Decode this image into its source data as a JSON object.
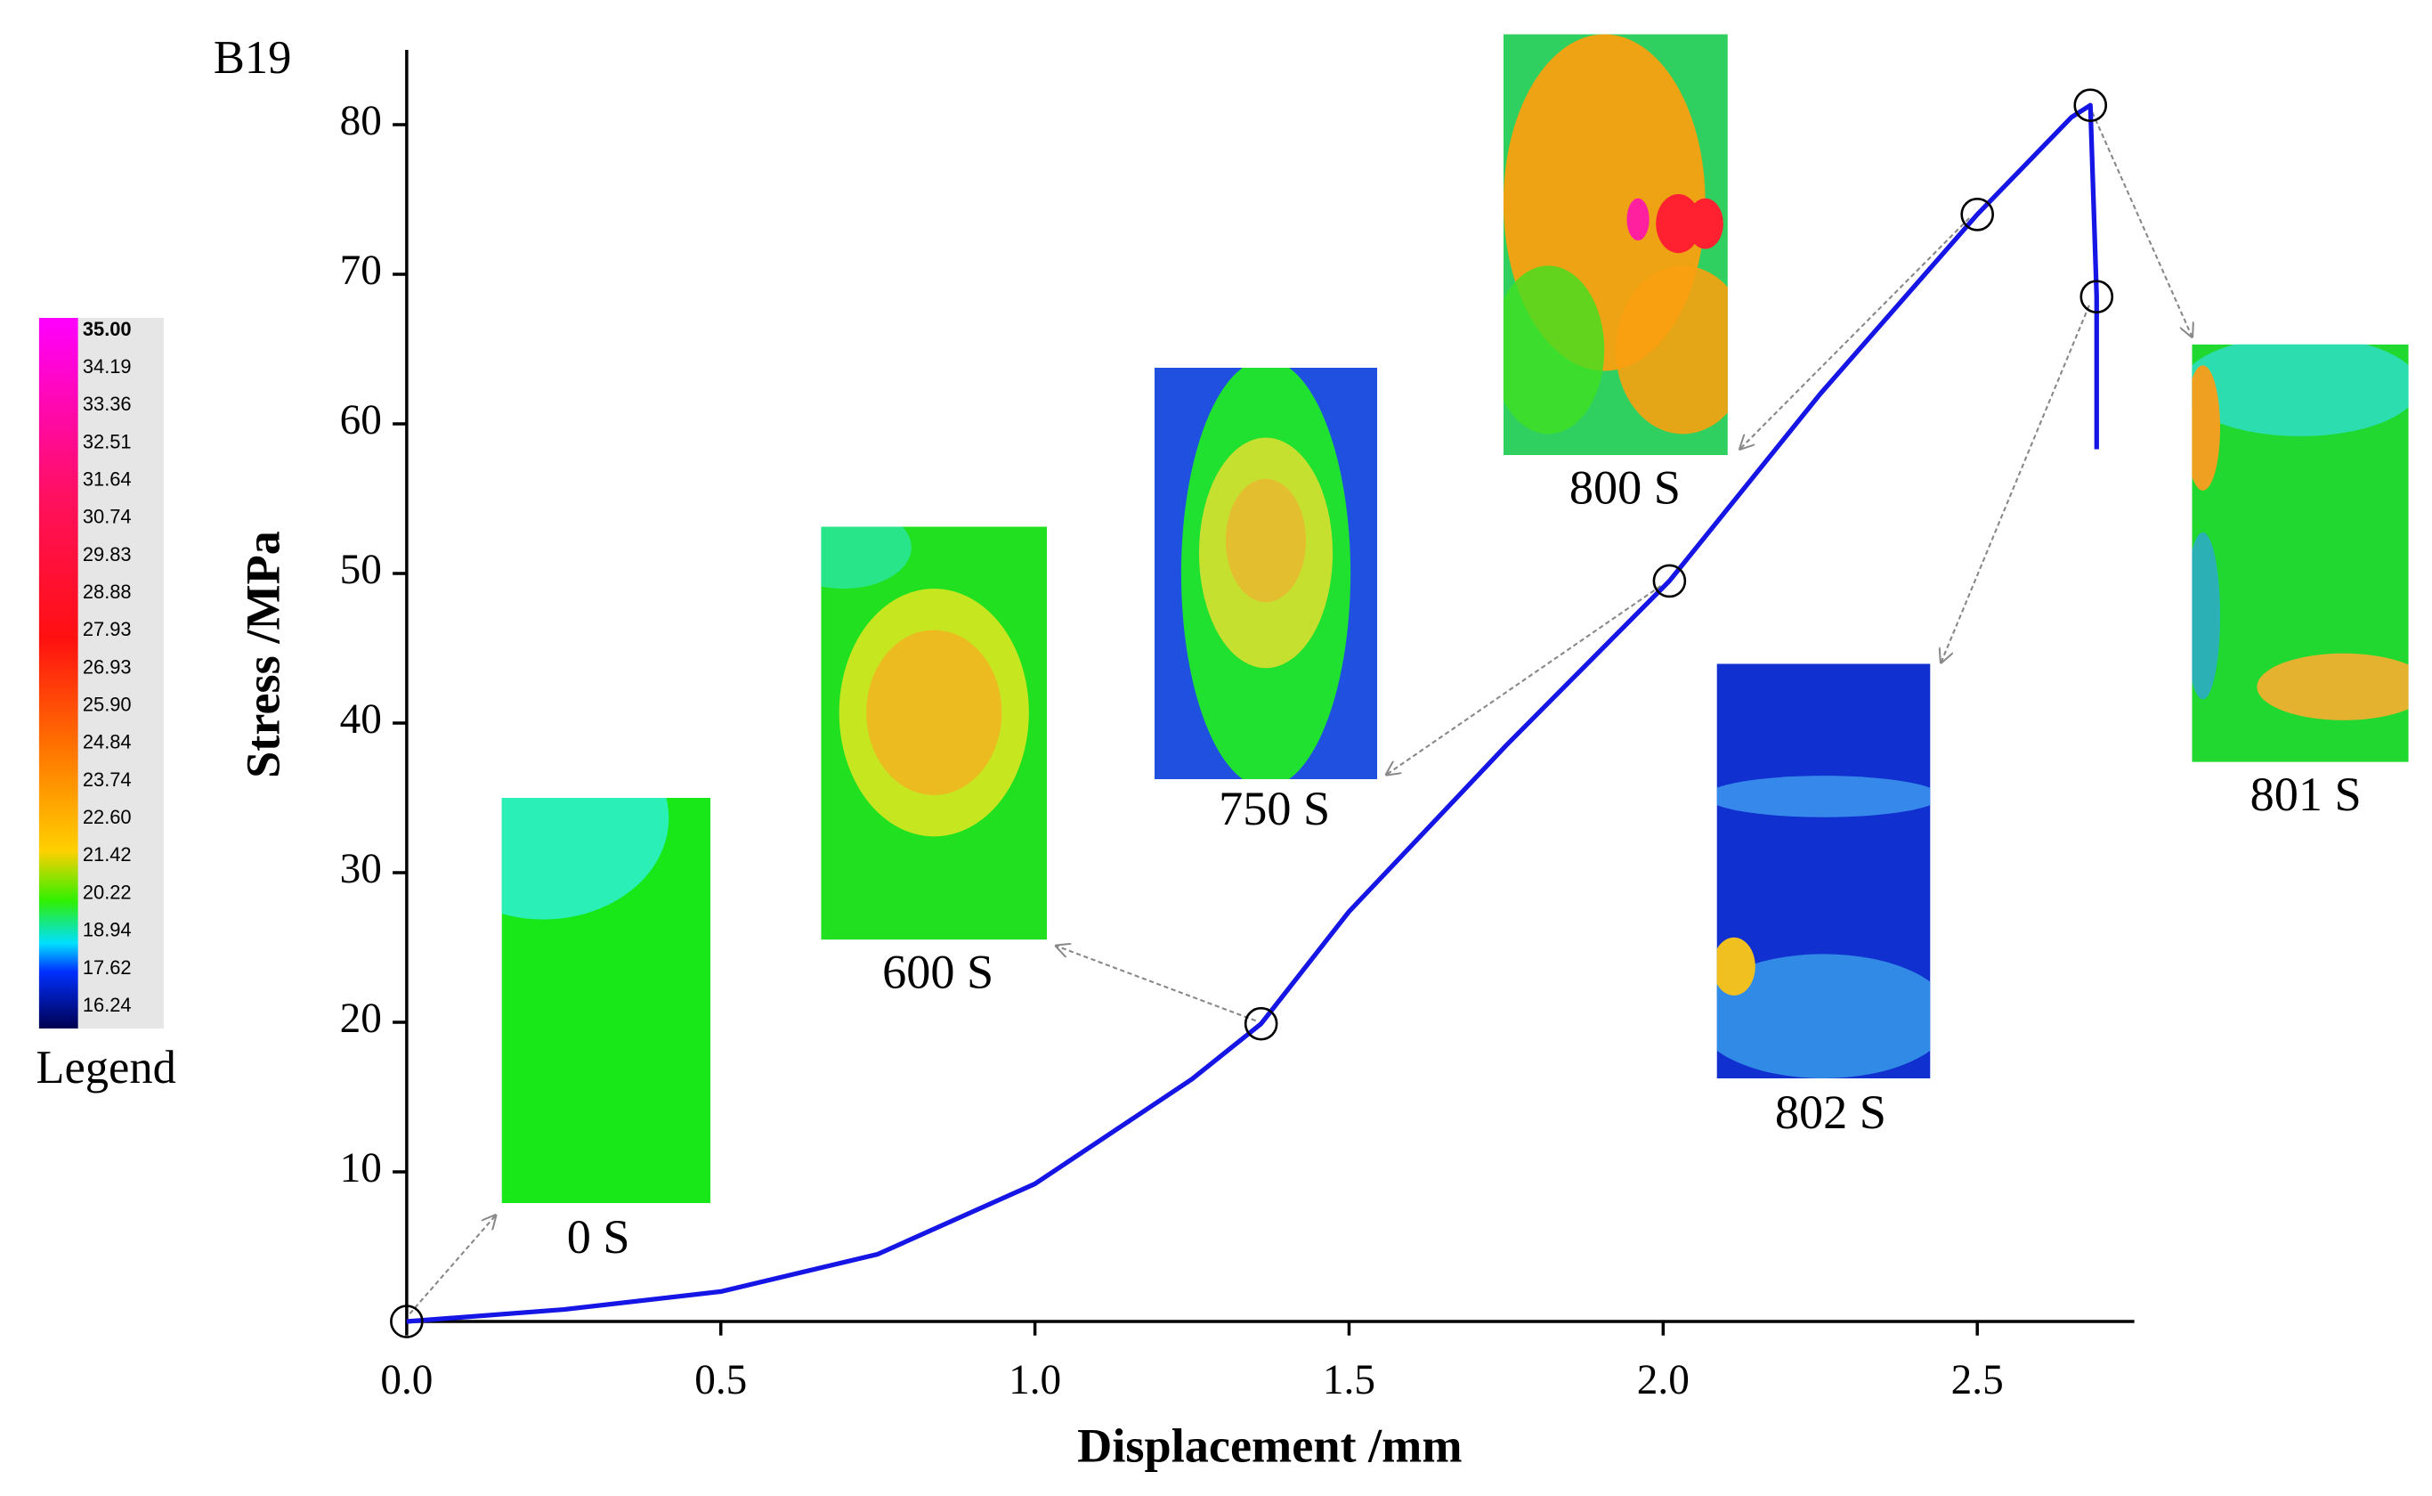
{
  "chart_data": {
    "type": "line",
    "annotation": "B19",
    "x_label": "Displacement /mm",
    "y_label": "Stress /MPa",
    "x": [
      0,
      0.25,
      0.5,
      0.75,
      1.0,
      1.25,
      1.36,
      1.5,
      1.75,
      2.01,
      2.25,
      2.5,
      2.65,
      2.68,
      2.69,
      2.69
    ],
    "values": [
      0,
      0.8,
      2.0,
      4.5,
      9.2,
      16.2,
      19.9,
      27.4,
      38.5,
      49.5,
      62,
      74,
      80.5,
      81.3,
      68.5,
      58.3
    ],
    "color": "#1515e6",
    "markers": {
      "x": [
        0,
        1.36,
        2.01,
        2.5,
        2.68,
        2.69
      ],
      "values": [
        0,
        19.9,
        49.5,
        74,
        81.3,
        68.5
      ]
    },
    "xlim": [
      0,
      2.75
    ],
    "ylim": [
      0,
      85
    ],
    "xticks": [
      {
        "value": 0,
        "label": "0.0"
      },
      0.5,
      {
        "value": 1,
        "label": "1.0"
      },
      1.5,
      {
        "value": 2,
        "label": "2.0"
      },
      2.5
    ],
    "yticks": [
      10,
      20,
      30,
      40,
      50,
      60,
      70,
      80
    ],
    "insets": [
      {
        "label": "0 S"
      },
      {
        "label": "600 S"
      },
      {
        "label": "750 S"
      },
      {
        "label": "800 S"
      },
      {
        "label": "802 S"
      },
      {
        "label": "801 S"
      }
    ],
    "colorbar": {
      "title": "Legend",
      "ticks": [
        {
          "value": 35,
          "label": "35.00"
        },
        34.19,
        33.36,
        32.51,
        31.64,
        30.74,
        29.83,
        28.88,
        27.93,
        26.93,
        {
          "value": 25.9,
          "label": "25.90"
        },
        24.84,
        23.74,
        {
          "value": 22.6,
          "label": "22.60"
        },
        21.42,
        20.22,
        18.94,
        17.62,
        16.24
      ]
    }
  }
}
